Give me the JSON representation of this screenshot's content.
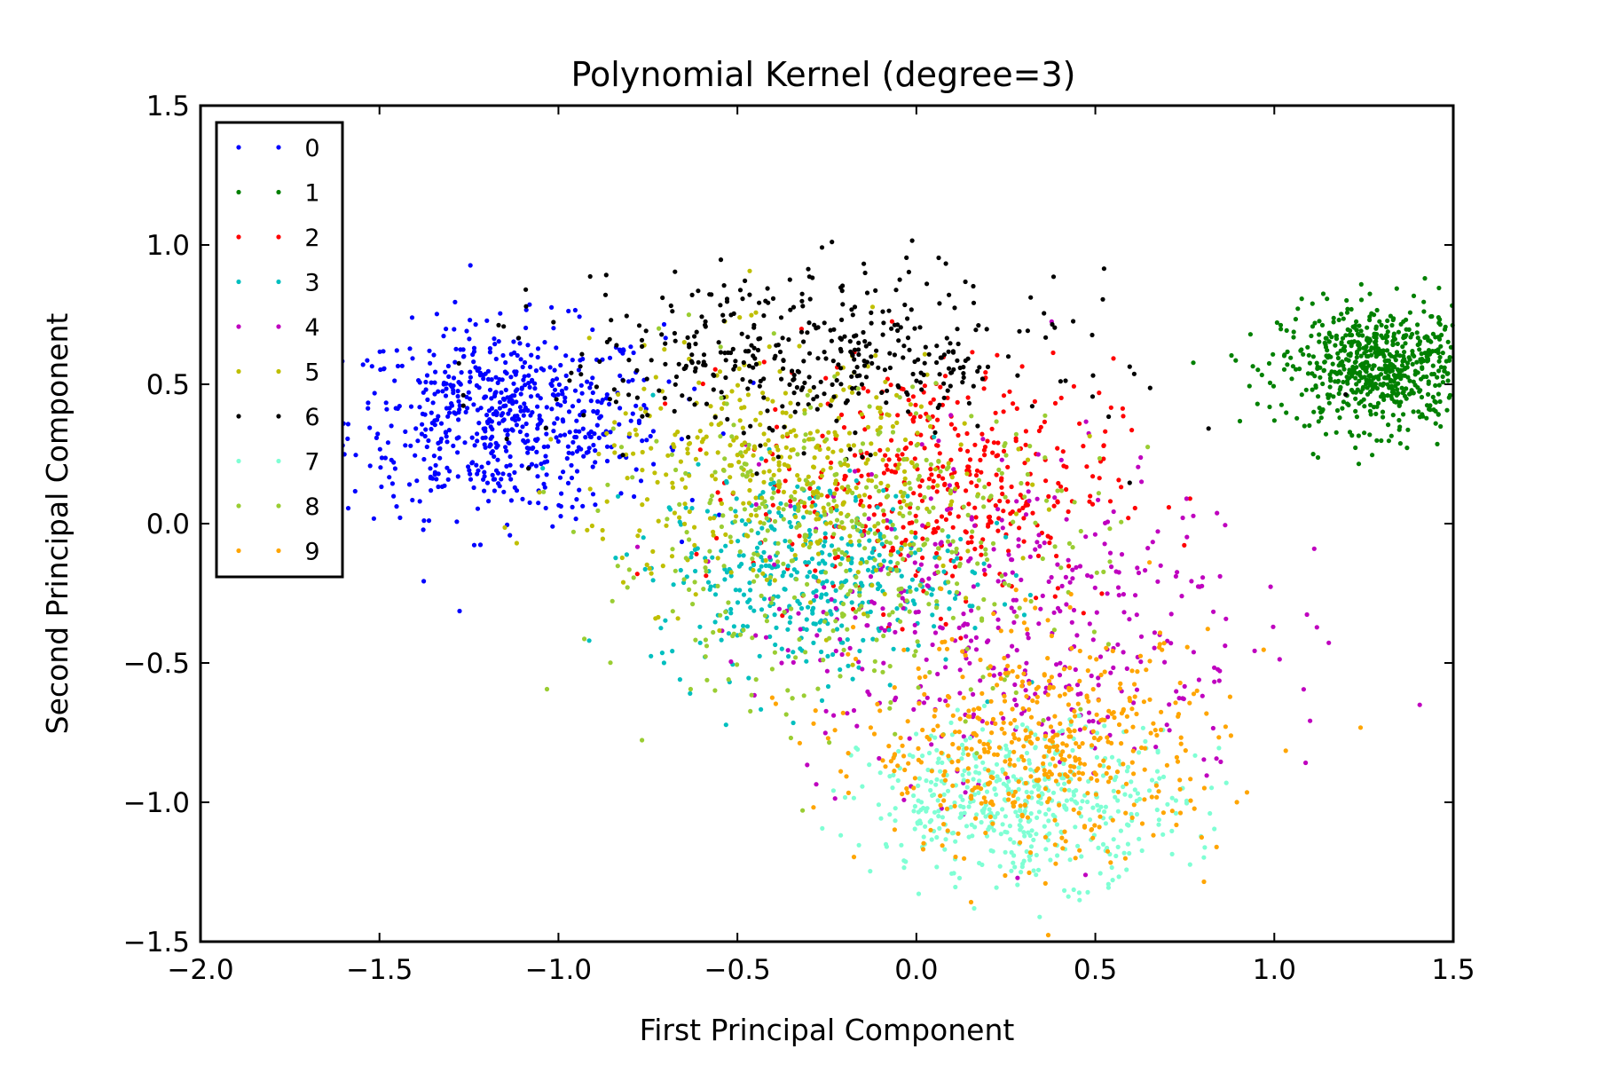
{
  "chart_data": {
    "type": "scatter",
    "title": "Polynomial Kernel (degree=3)",
    "xlabel": "First Principal Component",
    "ylabel": "Second Principal Component",
    "xlim": [
      -2.0,
      1.5
    ],
    "ylim": [
      -1.5,
      1.5
    ],
    "xticks": [
      "−2.0",
      "−1.5",
      "−1.0",
      "−0.5",
      "0.0",
      "0.5",
      "1.0",
      "1.5"
    ],
    "yticks": [
      "−1.5",
      "−1.0",
      "−0.5",
      "0.0",
      "0.5",
      "1.0",
      "1.5"
    ],
    "grid": false,
    "legend_position": "top-left",
    "series": [
      {
        "name": "0",
        "color": "#0000ff",
        "center": [
          -1.15,
          0.37
        ],
        "spread": [
          0.22,
          0.17
        ],
        "count": 650
      },
      {
        "name": "1",
        "color": "#008000",
        "center": [
          1.3,
          0.56
        ],
        "spread": [
          0.14,
          0.11
        ],
        "count": 700
      },
      {
        "name": "2",
        "color": "#ff0000",
        "center": [
          0.05,
          0.15
        ],
        "spread": [
          0.25,
          0.22
        ],
        "count": 420
      },
      {
        "name": "3",
        "color": "#00bfbf",
        "center": [
          -0.3,
          -0.18
        ],
        "spread": [
          0.22,
          0.18
        ],
        "count": 420
      },
      {
        "name": "4",
        "color": "#bf00bf",
        "center": [
          0.25,
          -0.35
        ],
        "spread": [
          0.35,
          0.3
        ],
        "count": 420
      },
      {
        "name": "5",
        "color": "#bfbf00",
        "center": [
          -0.35,
          0.18
        ],
        "spread": [
          0.28,
          0.22
        ],
        "count": 420
      },
      {
        "name": "6",
        "color": "#000000",
        "center": [
          -0.3,
          0.6
        ],
        "spread": [
          0.35,
          0.15
        ],
        "count": 420
      },
      {
        "name": "7",
        "color": "#7fffd4",
        "center": [
          0.3,
          -1.0
        ],
        "spread": [
          0.22,
          0.14
        ],
        "count": 500
      },
      {
        "name": "8",
        "color": "#9acd32",
        "center": [
          -0.2,
          -0.1
        ],
        "spread": [
          0.35,
          0.28
        ],
        "count": 420
      },
      {
        "name": "9",
        "color": "#ffa500",
        "center": [
          0.35,
          -0.8
        ],
        "spread": [
          0.25,
          0.2
        ],
        "count": 500
      }
    ]
  }
}
